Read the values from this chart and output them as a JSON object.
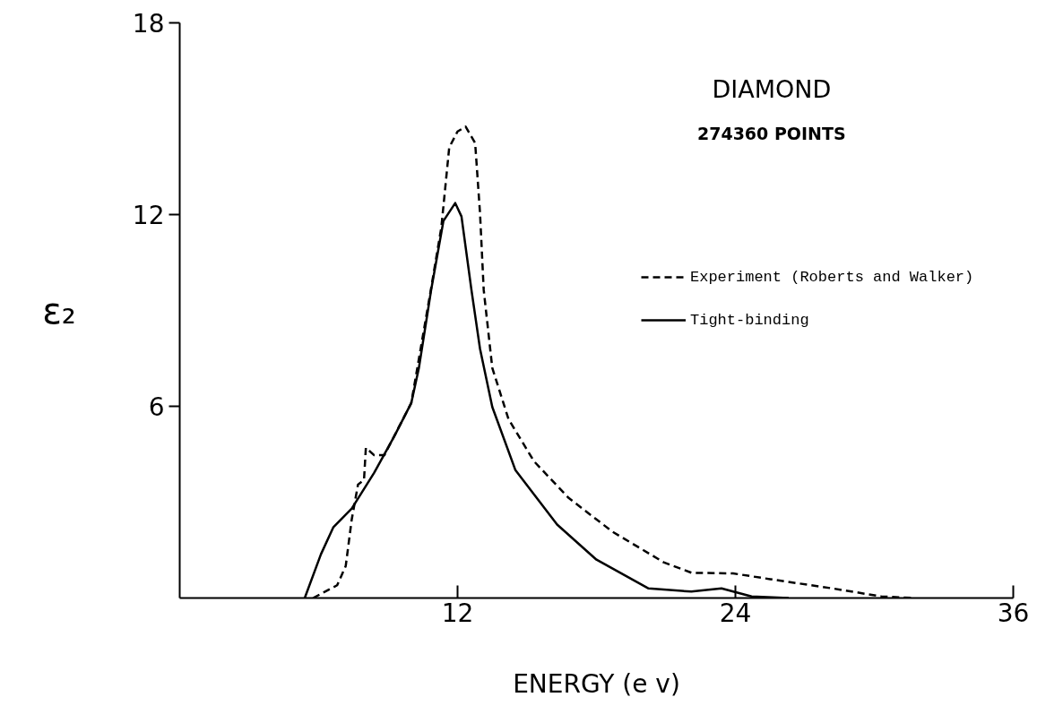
{
  "chart_data": {
    "type": "line",
    "title": "DIAMOND",
    "subtitle": "274360 POINTS",
    "xlabel": "ENERGY (e v)",
    "ylabel": "ε₂",
    "xlim": [
      0,
      36
    ],
    "ylim": [
      0,
      18
    ],
    "xticks": [
      12,
      24,
      36
    ],
    "yticks": [
      6,
      12,
      18
    ],
    "grid": false,
    "legend": "top right",
    "marker": "none",
    "series": [
      {
        "name": "Experiment (Roberts and Walker)",
        "color": "#000000",
        "line_style": "dashed",
        "x": [
          5.76,
          6.8,
          7.17,
          7.43,
          7.7,
          7.96,
          8.04,
          8.4,
          8.84,
          10.0,
          10.86,
          11.3,
          11.64,
          12.0,
          12.35,
          12.76,
          12.97,
          13.13,
          13.5,
          14.2,
          15.3,
          16.8,
          18.7,
          20.9,
          22.1,
          23.9,
          25.5,
          28.2,
          30.3,
          31.7
        ],
        "values": [
          0,
          0.4,
          1.0,
          2.46,
          3.55,
          3.7,
          4.7,
          4.47,
          4.47,
          6.1,
          9.7,
          11.6,
          14.1,
          14.6,
          14.75,
          14.24,
          12.05,
          9.64,
          7.2,
          5.6,
          4.28,
          3.13,
          2.07,
          1.12,
          0.79,
          0.77,
          0.59,
          0.3,
          0.05,
          0
        ]
      },
      {
        "name": "Tight-binding",
        "color": "#000000",
        "line_style": "solid",
        "x": [
          5.4,
          6.1,
          6.64,
          7.43,
          8.4,
          9.28,
          10.0,
          10.33,
          10.86,
          11.39,
          11.9,
          12.17,
          12.6,
          12.97,
          13.5,
          14.5,
          16.3,
          18.0,
          20.25,
          22.1,
          23.4,
          24.7,
          26.3
        ],
        "values": [
          0,
          1.37,
          2.22,
          2.8,
          3.92,
          5.08,
          6.1,
          7.2,
          9.64,
          11.8,
          12.36,
          11.94,
          9.64,
          7.8,
          5.98,
          4.0,
          2.3,
          1.2,
          0.3,
          0.2,
          0.3,
          0.05,
          0
        ]
      }
    ]
  }
}
